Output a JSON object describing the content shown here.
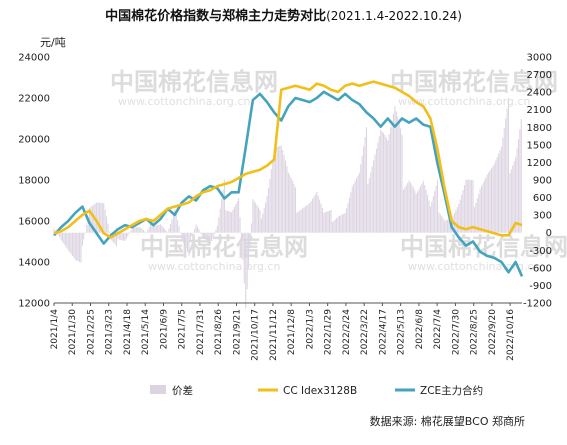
{
  "title": "中国棉花价格指数与郑棉主力走势对比",
  "title_range": "(2021.1.4-2022.10.24)",
  "unit_label": "元/吨",
  "source": "数据来源: 棉花展望BCO   郑商所",
  "watermark": {
    "main": "中国棉花信息网",
    "sub": "www.cottonchina.org.cn"
  },
  "colors": {
    "spread": "#ddd4e2",
    "cc_index": "#f2be1a",
    "zce": "#46a3bd"
  },
  "chart_data": {
    "type": "line",
    "title": "中国棉花价格指数与郑棉主力走势对比",
    "left_axis": {
      "min": 12000,
      "max": 24000,
      "ticks": [
        12000,
        14000,
        16000,
        18000,
        20000,
        22000,
        24000
      ]
    },
    "right_axis": {
      "min": -1200,
      "max": 3000,
      "ticks": [
        -1200,
        -900,
        -600,
        -300,
        0,
        300,
        600,
        900,
        1200,
        1500,
        1800,
        2100,
        2400,
        2700,
        3000
      ]
    },
    "x_tick_labels": [
      "2021/1/4",
      "2021/1/30",
      "2021/2/25",
      "2021/3/23",
      "2021/4/18",
      "2021/5/14",
      "2021/6/9",
      "2021/7/5",
      "2021/7/31",
      "2021/8/26",
      "2021/9/21",
      "2021/10/17",
      "2021/11/12",
      "2021/12/8",
      "2022/1/3",
      "2022/1/29",
      "2022/2/24",
      "2022/3/22",
      "2022/4/17",
      "2022/5/13",
      "2022/6/8",
      "2022/7/4",
      "2022/7/30",
      "2022/8/25",
      "2022/9/20",
      "2022/10/16"
    ],
    "x_index_range": [
      0,
      659
    ],
    "legend": [
      {
        "key": "spread",
        "label": "价差"
      },
      {
        "key": "cc_index",
        "label": "CC Idex3128B"
      },
      {
        "key": "zce",
        "label": "ZCE主力合约"
      }
    ],
    "series": [
      {
        "name": "CC Idex3128B",
        "key": "cc_index",
        "axis": "left",
        "x": [
          0,
          10,
          20,
          30,
          40,
          50,
          60,
          70,
          80,
          90,
          100,
          110,
          120,
          130,
          140,
          150,
          160,
          170,
          180,
          190,
          200,
          210,
          220,
          230,
          240,
          250,
          260,
          270,
          280,
          290,
          300,
          310,
          320,
          330,
          340,
          350,
          360,
          370,
          380,
          390,
          400,
          410,
          420,
          430,
          440,
          450,
          460,
          470,
          480,
          490,
          500,
          510,
          520,
          530,
          540,
          550,
          560,
          570,
          580,
          590,
          600,
          610,
          620,
          630,
          640,
          650,
          659
        ],
        "values": [
          15400,
          15500,
          15700,
          16000,
          16300,
          16500,
          16000,
          15400,
          15200,
          15400,
          15600,
          15800,
          16000,
          16100,
          16000,
          16300,
          16600,
          16700,
          16800,
          16900,
          17200,
          17400,
          17500,
          17700,
          17800,
          17900,
          18100,
          18300,
          18400,
          18500,
          18700,
          19000,
          22400,
          22500,
          22600,
          22500,
          22400,
          22700,
          22600,
          22400,
          22300,
          22600,
          22700,
          22600,
          22700,
          22800,
          22700,
          22600,
          22500,
          22300,
          22100,
          21800,
          21600,
          21000,
          19500,
          17600,
          16000,
          15700,
          15600,
          15700,
          15600,
          15500,
          15400,
          15300,
          15300,
          15900,
          15800
        ]
      },
      {
        "name": "ZCE主力合约",
        "key": "zce",
        "axis": "left",
        "x": [
          0,
          10,
          20,
          30,
          40,
          50,
          60,
          70,
          80,
          90,
          100,
          110,
          120,
          130,
          140,
          150,
          160,
          170,
          180,
          190,
          200,
          210,
          220,
          230,
          240,
          250,
          260,
          270,
          280,
          290,
          300,
          310,
          320,
          330,
          340,
          350,
          360,
          370,
          380,
          390,
          400,
          410,
          420,
          430,
          440,
          450,
          460,
          470,
          480,
          490,
          500,
          510,
          520,
          530,
          540,
          550,
          560,
          570,
          580,
          590,
          600,
          610,
          620,
          630,
          640,
          650,
          659
        ],
        "values": [
          15300,
          15700,
          16000,
          16400,
          16700,
          15900,
          15400,
          14900,
          15300,
          15600,
          15800,
          15700,
          15900,
          16100,
          15800,
          16100,
          16600,
          16300,
          16900,
          17200,
          17000,
          17500,
          17700,
          17600,
          17100,
          17400,
          17400,
          19600,
          21900,
          22200,
          21800,
          21300,
          20900,
          21600,
          22000,
          21900,
          21800,
          22000,
          22300,
          22100,
          21900,
          22200,
          21900,
          21700,
          21300,
          21000,
          20600,
          21000,
          20600,
          21000,
          20800,
          21000,
          20700,
          20600,
          18800,
          17300,
          15700,
          15200,
          14800,
          15000,
          14500,
          14300,
          14200,
          14000,
          13500,
          14000,
          13300
        ]
      },
      {
        "name": "价差",
        "key": "spread",
        "axis": "right",
        "x": [
          0,
          10,
          20,
          30,
          40,
          50,
          60,
          70,
          80,
          90,
          100,
          110,
          120,
          130,
          140,
          150,
          160,
          170,
          180,
          190,
          200,
          210,
          220,
          230,
          240,
          250,
          260,
          270,
          280,
          290,
          300,
          310,
          320,
          330,
          340,
          350,
          360,
          370,
          380,
          390,
          400,
          410,
          420,
          430,
          440,
          450,
          460,
          470,
          480,
          490,
          500,
          510,
          520,
          530,
          540,
          550,
          560,
          570,
          580,
          590,
          600,
          610,
          620,
          630,
          640,
          650,
          659
        ],
        "values": [
          100,
          -150,
          -300,
          -400,
          -400,
          600,
          600,
          500,
          -100,
          -200,
          -200,
          100,
          100,
          0,
          200,
          200,
          0,
          400,
          -100,
          -300,
          200,
          -100,
          -200,
          100,
          700,
          500,
          700,
          -1300,
          500,
          300,
          900,
          1700,
          1500,
          900,
          600,
          600,
          600,
          700,
          300,
          300,
          400,
          400,
          800,
          900,
          1400,
          1800,
          2100,
          1600,
          1900,
          1300,
          1300,
          800,
          900,
          400,
          700,
          300,
          300,
          500,
          800,
          700,
          1100,
          1200,
          1200,
          1300,
          1800,
          1900,
          2500
        ]
      }
    ]
  }
}
